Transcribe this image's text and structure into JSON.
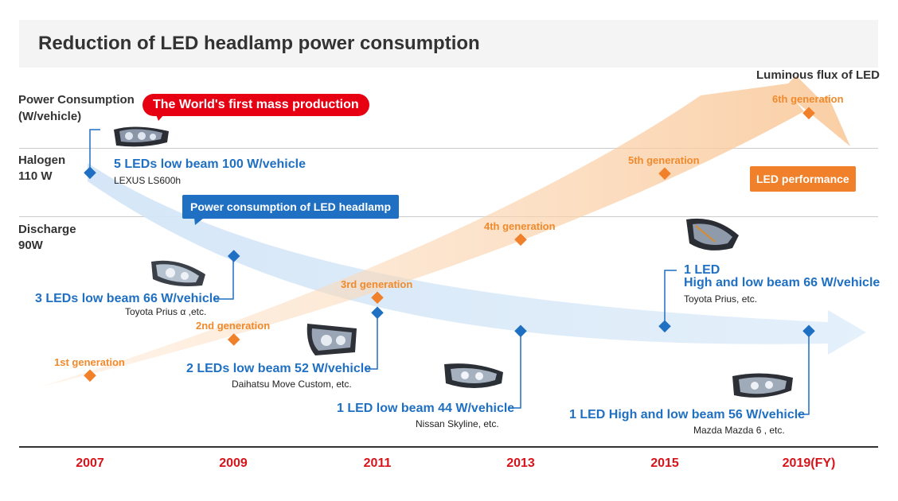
{
  "title": "Reduction of LED headlamp power consumption",
  "axis": {
    "y_title_line1": "Power Consumption",
    "y_title_line2": "(W/vehicle)",
    "halogen_line1": "Halogen",
    "halogen_line2": "110 W",
    "discharge_line1": "Discharge",
    "discharge_line2": "90W",
    "luminous_label": "Luminous flux of LED"
  },
  "callouts": {
    "world_first": "The World's first mass production",
    "power_consumption": "Power consumption of LED headlamp",
    "led_performance": "LED performance"
  },
  "generations": [
    "1st generation",
    "2nd generation",
    "3rd generation",
    "4th generation",
    "5th generation",
    "6th generation"
  ],
  "products": [
    {
      "main": "5 LEDs low beam 100 W/vehicle",
      "sub": "LEXUS LS600h"
    },
    {
      "main": "3 LEDs low beam 66 W/vehicle",
      "sub": "Toyota Prius α ,etc."
    },
    {
      "main": "2 LEDs low beam 52 W/vehicle",
      "sub": "Daihatsu Move Custom, etc."
    },
    {
      "main": "1 LED low beam 44 W/vehicle",
      "sub": "Nissan Skyline, etc."
    },
    {
      "main_line1": "1 LED",
      "main_line2": "High and low beam 66 W/vehicle",
      "sub": "Toyota Prius, etc."
    },
    {
      "main": "1 LED High and low beam 56 W/vehicle",
      "sub": "Mazda Mazda 6 , etc."
    }
  ],
  "years": [
    "2007",
    "2009",
    "2011",
    "2013",
    "2015",
    "2019(FY)"
  ],
  "colors": {
    "power_blue": "#1f6fc2",
    "led_orange": "#f0802a",
    "year_red": "#d7141a",
    "callout_red": "#e60012",
    "title_bg": "#f4f4f4"
  },
  "icons": [
    "headlamp-image"
  ]
}
